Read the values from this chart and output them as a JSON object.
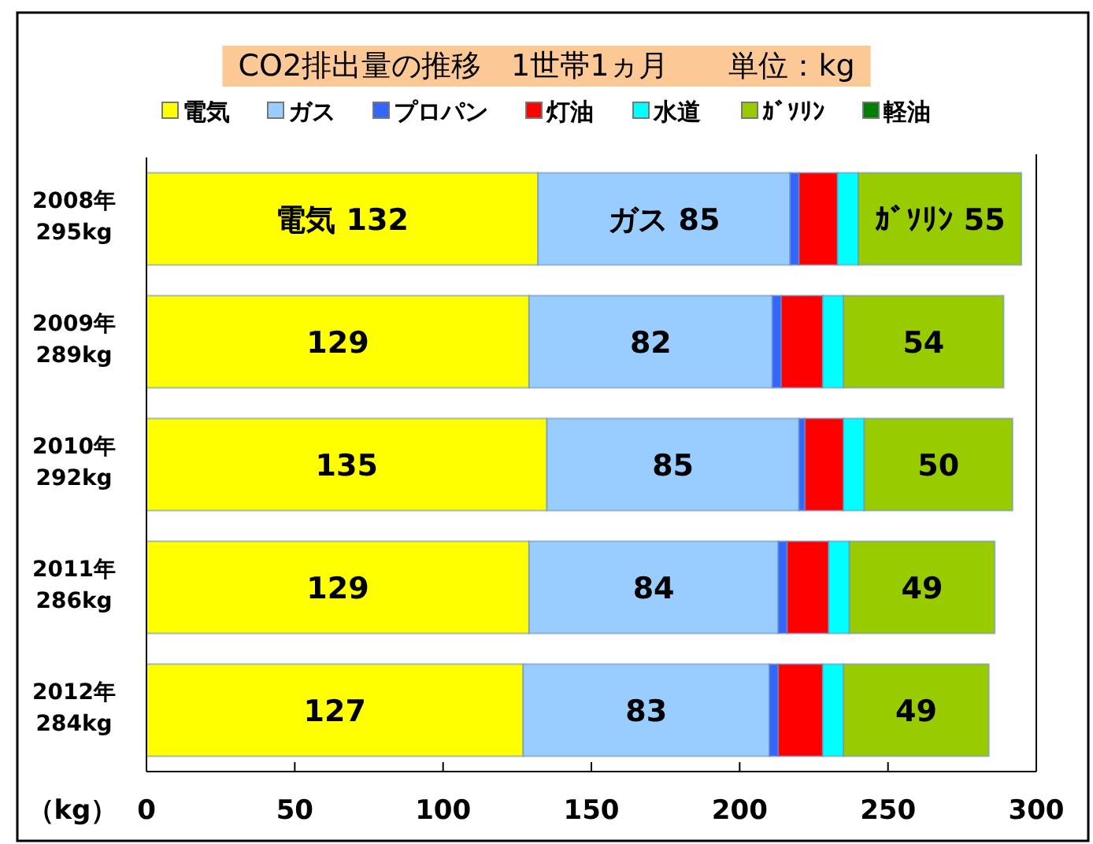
{
  "chart_data": {
    "type": "bar",
    "orientation": "horizontal",
    "stacked": true,
    "title": "CO2排出量の推移　1世帯1ヵ月　　単位：kg",
    "xlabel": "（kg）",
    "categories": [
      "2008年\n295kg",
      "2009年\n289kg",
      "2010年\n292kg",
      "2011年\n286kg",
      "2012年\n284kg"
    ],
    "xlim": [
      0,
      300
    ],
    "xticks": [
      0,
      50,
      100,
      150,
      200,
      250,
      300
    ],
    "grid": false,
    "legend": "top",
    "series": [
      {
        "name": "電気",
        "color": "#ffff00",
        "values": [
          132,
          129,
          135,
          129,
          127
        ],
        "value_labels": [
          "電気 132",
          "129",
          "135",
          "129",
          "127"
        ]
      },
      {
        "name": "ガス",
        "color": "#99ccff",
        "values": [
          85,
          82,
          85,
          84,
          83
        ],
        "value_labels": [
          "ガス 85",
          "82",
          "85",
          "84",
          "83"
        ]
      },
      {
        "name": "プロパン",
        "color": "#3366ff",
        "values": [
          3,
          3,
          2,
          3,
          3
        ]
      },
      {
        "name": "灯油",
        "color": "#ff0000",
        "values": [
          13,
          14,
          13,
          14,
          15
        ]
      },
      {
        "name": "水道",
        "color": "#00ffff",
        "values": [
          7,
          7,
          7,
          7,
          7
        ]
      },
      {
        "name": "ｶﾞｿﾘﾝ",
        "color": "#99cc00",
        "values": [
          55,
          54,
          50,
          49,
          49
        ],
        "value_labels": [
          "ｶﾞｿﾘﾝ 55",
          "54",
          "50",
          "49",
          "49"
        ]
      },
      {
        "name": "軽油",
        "color": "#008000",
        "values": [
          0,
          0,
          0,
          0,
          0
        ]
      }
    ]
  }
}
